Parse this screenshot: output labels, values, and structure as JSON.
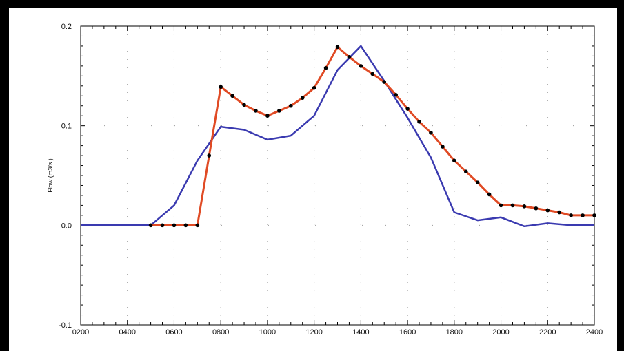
{
  "chart_data": {
    "type": "line",
    "title": "",
    "xlabel": "",
    "ylabel": "Flow (m3/s  )",
    "x_tick_labels": [
      "0200",
      "0400",
      "0600",
      "0800",
      "1000",
      "1200",
      "1400",
      "1600",
      "1800",
      "2000",
      "2200",
      "2400"
    ],
    "x_tick_values": [
      200,
      400,
      600,
      800,
      1000,
      1200,
      1400,
      1600,
      1800,
      2000,
      2200,
      2400
    ],
    "y_tick_labels": [
      "0.2",
      "0.1",
      "0.0",
      "-0.1"
    ],
    "y_tick_values": [
      0.2,
      0.1,
      0.0,
      -0.1
    ],
    "xlim": [
      200,
      2400
    ],
    "ylim": [
      -0.1,
      0.2
    ],
    "grid": "dotted vertical and horizontal",
    "series": [
      {
        "color": "#3a3ab0",
        "marker": "none",
        "x": [
          200,
          500,
          600,
          700,
          800,
          900,
          1000,
          1100,
          1200,
          1300,
          1400,
          1500,
          1600,
          1700,
          1800,
          1900,
          2000,
          2100,
          2200,
          2300,
          2400
        ],
        "y": [
          0.0,
          0.0,
          0.02,
          0.065,
          0.099,
          0.096,
          0.086,
          0.09,
          0.11,
          0.156,
          0.18,
          0.145,
          0.108,
          0.068,
          0.013,
          0.005,
          0.008,
          -0.001,
          0.002,
          0.0,
          0.0
        ]
      },
      {
        "color": "#e04a24",
        "marker": "black-dot",
        "x": [
          500,
          550,
          600,
          650,
          700,
          750,
          800,
          850,
          900,
          950,
          1000,
          1050,
          1100,
          1150,
          1200,
          1250,
          1300,
          1350,
          1400,
          1450,
          1500,
          1550,
          1600,
          1650,
          1700,
          1750,
          1800,
          1850,
          1900,
          1950,
          2000,
          2050,
          2100,
          2150,
          2200,
          2250,
          2300,
          2350,
          2400
        ],
        "y": [
          0.0,
          0.0,
          0.0,
          0.0,
          0.0,
          0.07,
          0.139,
          0.13,
          0.121,
          0.115,
          0.11,
          0.115,
          0.12,
          0.128,
          0.138,
          0.158,
          0.179,
          0.169,
          0.16,
          0.152,
          0.144,
          0.131,
          0.117,
          0.104,
          0.093,
          0.079,
          0.065,
          0.054,
          0.043,
          0.031,
          0.02,
          0.02,
          0.019,
          0.017,
          0.015,
          0.013,
          0.01,
          0.01,
          0.01
        ]
      }
    ]
  }
}
